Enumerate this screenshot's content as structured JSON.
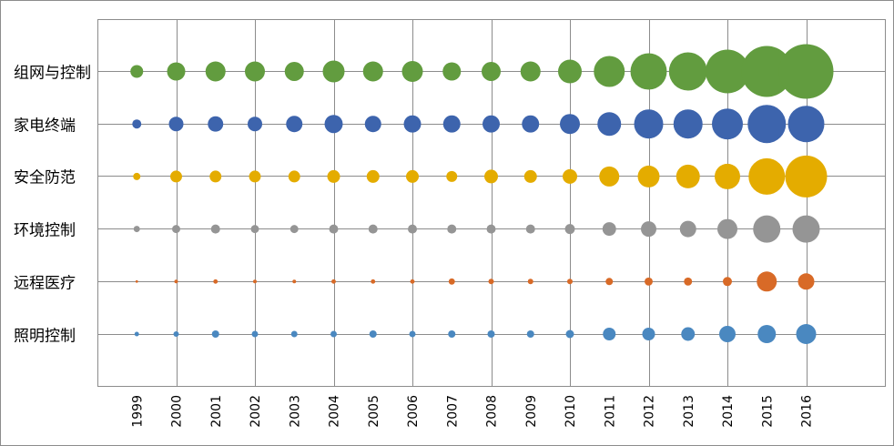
{
  "chart_data": {
    "type": "bubble",
    "title": "",
    "xlabel": "",
    "ylabel": "",
    "x": [
      1999,
      2000,
      2001,
      2002,
      2003,
      2004,
      2005,
      2006,
      2007,
      2008,
      2009,
      2010,
      2011,
      2012,
      2013,
      2014,
      2015,
      2016
    ],
    "x_tick_labels": [
      "1999",
      "2000",
      "2001",
      "2002",
      "2003",
      "2004",
      "2005",
      "2006",
      "2007",
      "2008",
      "2009",
      "2010",
      "2011",
      "2012",
      "2013",
      "2014",
      "2015",
      "2016"
    ],
    "xlim": [
      1998,
      2018
    ],
    "x_grid_major_unit": 2,
    "grid": true,
    "legend": "none",
    "size_note": "relative bubble size (area)",
    "series": [
      {
        "name": "组网与控制",
        "color": "#629c3f",
        "values": [
          49,
          100,
          121,
          121,
          110,
          144,
          121,
          132,
          100,
          110,
          121,
          169,
          289,
          400,
          441,
          576,
          784,
          900
        ]
      },
      {
        "name": "家电终端",
        "color": "#3d64ad",
        "values": [
          25,
          64,
          72,
          64,
          81,
          100,
          81,
          90,
          90,
          90,
          90,
          121,
          169,
          256,
          256,
          289,
          441,
          400
        ]
      },
      {
        "name": "安全防范",
        "color": "#e4ac00",
        "values": [
          16,
          42,
          42,
          42,
          42,
          49,
          49,
          49,
          36,
          56,
          49,
          64,
          121,
          144,
          169,
          196,
          400,
          529
        ]
      },
      {
        "name": "环境控制",
        "color": "#959595",
        "values": [
          12,
          20,
          25,
          20,
          20,
          25,
          25,
          25,
          25,
          25,
          25,
          30,
          56,
          72,
          81,
          121,
          225,
          225
        ]
      },
      {
        "name": "远程医疗",
        "color": "#d86a27",
        "values": [
          2,
          4,
          6,
          4,
          4,
          6,
          6,
          6,
          12,
          9,
          9,
          9,
          16,
          20,
          20,
          25,
          121,
          81
        ]
      },
      {
        "name": "照明控制",
        "color": "#4a88c0",
        "values": [
          6,
          9,
          16,
          12,
          12,
          12,
          16,
          12,
          16,
          16,
          16,
          20,
          49,
          49,
          56,
          81,
          100,
          121
        ]
      }
    ]
  }
}
